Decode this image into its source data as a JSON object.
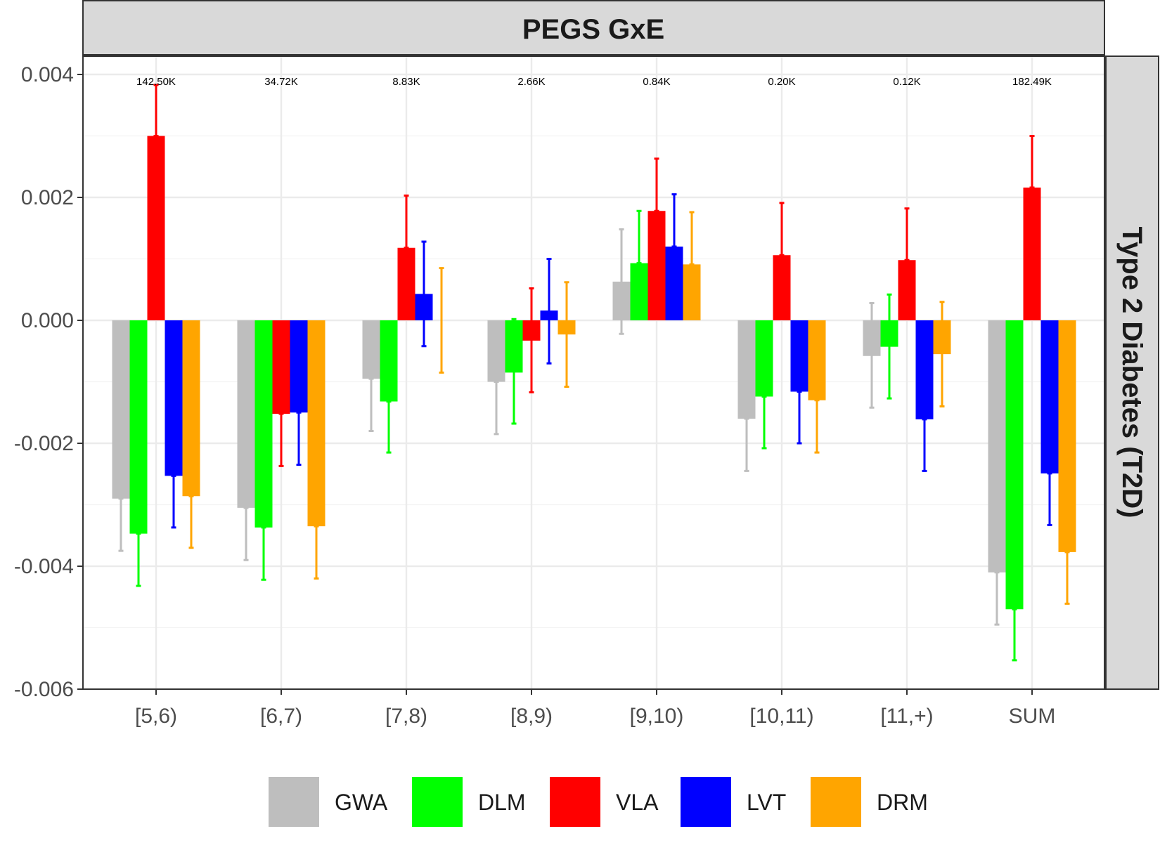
{
  "chart_data": {
    "type": "bar",
    "facet_title": "PEGS GxE",
    "facet_row_label": "Type 2 Diabetes (T2D)",
    "categories": [
      "[5,6)",
      "[6,7)",
      "[7,8)",
      "[8,9)",
      "[9,10)",
      "[10,11)",
      "[11,+)",
      "SUM"
    ],
    "counts": [
      "142.50K",
      "34.72K",
      "8.83K",
      "2.66K",
      "0.84K",
      "0.20K",
      "0.12K",
      "182.49K"
    ],
    "ylim": [
      -0.006,
      0.0042
    ],
    "yticks": [
      0.004,
      0.002,
      0.0,
      -0.002,
      -0.004,
      -0.006
    ],
    "ytick_labels": [
      "0.004",
      "0.002",
      "0.000",
      "-0.002",
      "-0.004",
      "-0.006"
    ],
    "grid": true,
    "legend_position": "bottom",
    "error_bars": true,
    "series": [
      {
        "name": "GWA",
        "color": "#bebebe",
        "values": [
          -0.0029,
          -0.00305,
          -0.00095,
          -0.001,
          0.00063,
          -0.0016,
          -0.00058,
          -0.0041
        ],
        "err_low": [
          -0.00375,
          -0.0039,
          -0.0018,
          -0.00185,
          -0.00022,
          -0.00245,
          -0.00142,
          -0.00495
        ],
        "err_high": [
          -0.0029,
          -0.00305,
          -0.00095,
          -0.001,
          0.00148,
          -0.0016,
          0.00028,
          -0.0041
        ]
      },
      {
        "name": "DLM",
        "color": "#00ff00",
        "values": [
          -0.00347,
          -0.00337,
          -0.00132,
          -0.00085,
          0.00093,
          -0.00124,
          -0.00043,
          -0.0047
        ],
        "err_low": [
          -0.00432,
          -0.00422,
          -0.00215,
          -0.00168,
          0.00093,
          -0.00208,
          -0.00127,
          -0.00553
        ],
        "err_high": [
          -0.00347,
          -0.00337,
          -0.00132,
          2e-05,
          0.00178,
          -0.00124,
          0.00042,
          -0.0047
        ]
      },
      {
        "name": "VLA",
        "color": "#ff0000",
        "values": [
          0.003,
          -0.00152,
          0.00118,
          -0.00033,
          0.00178,
          0.00106,
          0.00098,
          0.00216
        ],
        "err_low": [
          0.003,
          -0.00237,
          0.00118,
          -0.00117,
          0.00178,
          0.00106,
          0.00098,
          0.00216
        ],
        "err_high": [
          0.00383,
          -0.00152,
          0.00203,
          0.00052,
          0.00263,
          0.00191,
          0.00182,
          0.003
        ]
      },
      {
        "name": "LVT",
        "color": "#0000ff",
        "values": [
          -0.00253,
          -0.0015,
          0.00043,
          0.00016,
          0.0012,
          -0.00116,
          -0.00161,
          -0.00249
        ],
        "err_low": [
          -0.00337,
          -0.00235,
          -0.00042,
          -0.0007,
          0.0012,
          -0.002,
          -0.00245,
          -0.00333
        ],
        "err_high": [
          -0.00253,
          -0.0015,
          0.00128,
          0.001,
          0.00205,
          -0.00116,
          -0.00161,
          -0.00249
        ]
      },
      {
        "name": "DRM",
        "color": "#ffa500",
        "values": [
          -0.00286,
          -0.00335,
          0.0,
          -0.00023,
          0.00091,
          -0.0013,
          -0.00055,
          -0.00377
        ],
        "err_low": [
          -0.0037,
          -0.0042,
          -0.00085,
          -0.00108,
          0.00091,
          -0.00215,
          -0.0014,
          -0.00461
        ],
        "err_high": [
          -0.00286,
          -0.00335,
          0.00085,
          0.00062,
          0.00176,
          -0.0013,
          0.0003,
          -0.00377
        ]
      }
    ]
  },
  "colors": {
    "strip_background": "#d9d9d9",
    "grid_major": "#ebebeb",
    "grid_minor": "#f2f2f2",
    "panel_border": "#333333"
  }
}
